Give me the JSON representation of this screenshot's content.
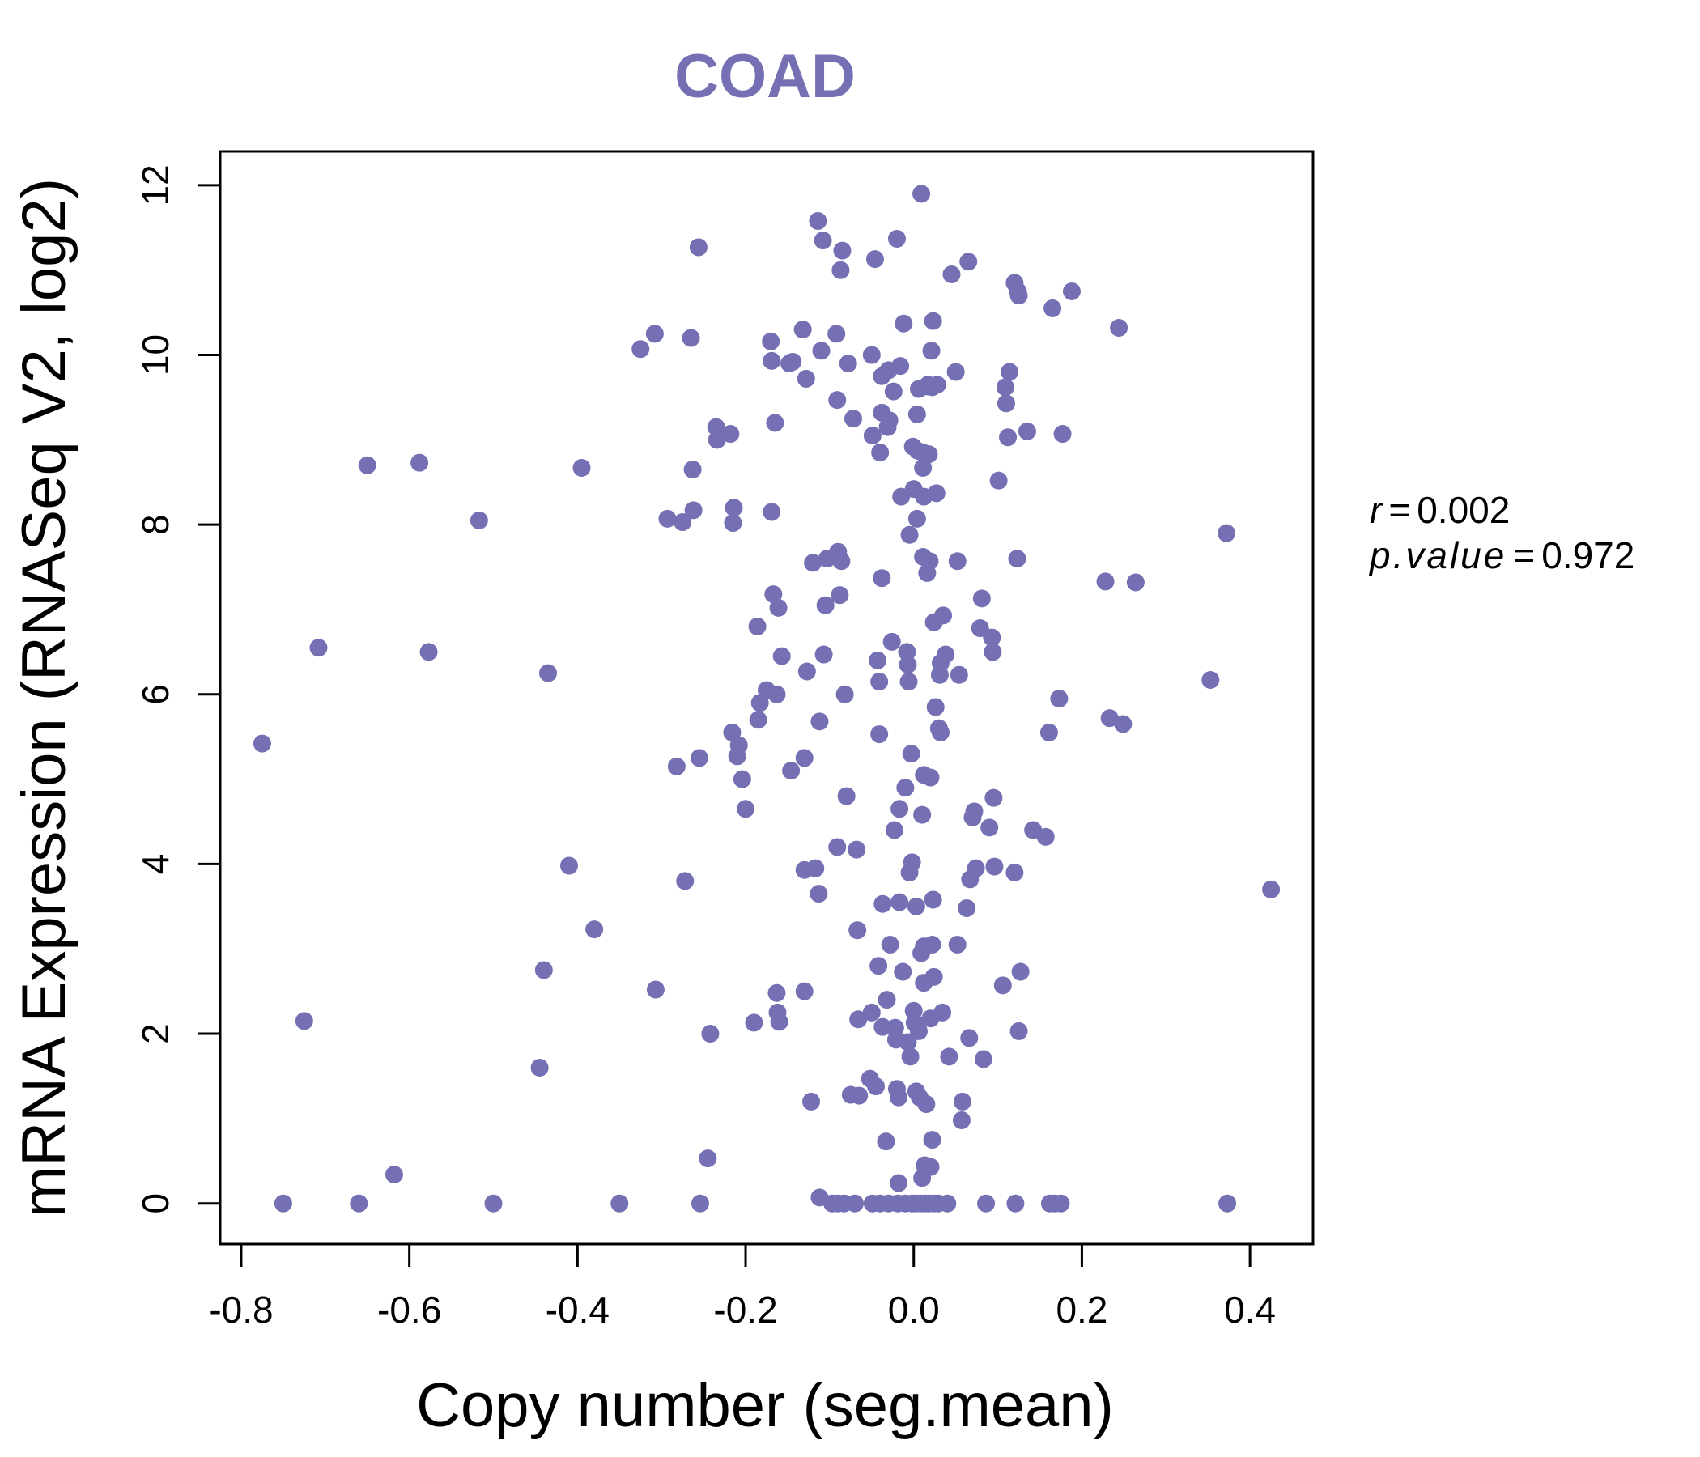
{
  "chart_data": {
    "type": "scatter",
    "title": "COAD",
    "xlabel": "Copy number (seg.mean)",
    "ylabel": "mRNA Expression (RNASeq V2, log2)",
    "xlim": [
      -0.825,
      0.475
    ],
    "ylim": [
      -0.48,
      12.4
    ],
    "x_ticks": [
      -0.8,
      -0.6,
      -0.4,
      -0.2,
      0.0,
      0.2,
      0.4
    ],
    "x_tick_labels": [
      "-0.8",
      "-0.6",
      "-0.4",
      "-0.2",
      "0.0",
      "0.2",
      "0.4"
    ],
    "y_ticks": [
      0,
      2,
      4,
      6,
      8,
      10,
      12
    ],
    "y_tick_labels": [
      "0",
      "2",
      "4",
      "6",
      "8",
      "10",
      "12"
    ],
    "grid": false,
    "legend": "none",
    "point_color": "#7570b3",
    "stats": {
      "r_label": "r",
      "r_value": "0.002",
      "p_label": "p.value",
      "p_value": "0.972"
    },
    "points": [
      [
        -0.775,
        5.42
      ],
      [
        -0.75,
        0.0
      ],
      [
        -0.725,
        2.15
      ],
      [
        -0.708,
        6.55
      ],
      [
        -0.66,
        0.0
      ],
      [
        -0.65,
        8.7
      ],
      [
        -0.618,
        0.34
      ],
      [
        -0.588,
        8.73
      ],
      [
        -0.577,
        6.5
      ],
      [
        -0.517,
        8.05
      ],
      [
        -0.5,
        0.0
      ],
      [
        -0.445,
        1.6
      ],
      [
        -0.44,
        2.75
      ],
      [
        -0.435,
        6.25
      ],
      [
        -0.41,
        3.98
      ],
      [
        -0.395,
        8.67
      ],
      [
        -0.38,
        3.23
      ],
      [
        -0.35,
        0.0
      ],
      [
        -0.325,
        10.07
      ],
      [
        -0.308,
        10.25
      ],
      [
        -0.307,
        2.52
      ],
      [
        -0.293,
        8.07
      ],
      [
        -0.282,
        5.15
      ],
      [
        -0.275,
        8.03
      ],
      [
        -0.272,
        3.8
      ],
      [
        -0.265,
        10.2
      ],
      [
        -0.263,
        8.65
      ],
      [
        -0.262,
        8.17
      ],
      [
        -0.256,
        11.27
      ],
      [
        -0.255,
        5.25
      ],
      [
        -0.254,
        0.0
      ],
      [
        -0.245,
        0.53
      ],
      [
        -0.242,
        2.0
      ],
      [
        -0.235,
        9.15
      ],
      [
        -0.234,
        9.0
      ],
      [
        -0.218,
        9.07
      ],
      [
        -0.216,
        5.55
      ],
      [
        -0.215,
        8.02
      ],
      [
        -0.214,
        8.2
      ],
      [
        -0.21,
        5.27
      ],
      [
        -0.208,
        5.4
      ],
      [
        -0.204,
        5.0
      ],
      [
        -0.2,
        4.65
      ],
      [
        -0.19,
        2.13
      ],
      [
        -0.186,
        6.8
      ],
      [
        -0.185,
        5.7
      ],
      [
        -0.183,
        5.9
      ],
      [
        -0.175,
        6.05
      ],
      [
        -0.17,
        10.16
      ],
      [
        -0.169,
        9.93
      ],
      [
        -0.169,
        8.15
      ],
      [
        -0.167,
        7.18
      ],
      [
        -0.165,
        9.2
      ],
      [
        -0.163,
        6.0
      ],
      [
        -0.163,
        2.48
      ],
      [
        -0.162,
        2.25
      ],
      [
        -0.161,
        7.02
      ],
      [
        -0.16,
        2.14
      ],
      [
        -0.157,
        6.45
      ],
      [
        -0.148,
        9.9
      ],
      [
        -0.146,
        5.1
      ],
      [
        -0.144,
        9.92
      ],
      [
        -0.132,
        10.3
      ],
      [
        -0.13,
        5.25
      ],
      [
        -0.13,
        3.93
      ],
      [
        -0.13,
        2.5
      ],
      [
        -0.128,
        9.72
      ],
      [
        -0.127,
        6.27
      ],
      [
        -0.122,
        1.2
      ],
      [
        -0.12,
        7.55
      ],
      [
        -0.117,
        3.95
      ],
      [
        -0.114,
        11.58
      ],
      [
        -0.113,
        3.65
      ],
      [
        -0.112,
        5.68
      ],
      [
        -0.112,
        0.07
      ],
      [
        -0.11,
        10.05
      ],
      [
        -0.108,
        11.35
      ],
      [
        -0.107,
        6.47
      ],
      [
        -0.105,
        7.05
      ],
      [
        -0.103,
        7.6
      ],
      [
        -0.097,
        0.0
      ],
      [
        -0.092,
        10.25
      ],
      [
        -0.091,
        9.47
      ],
      [
        -0.091,
        4.2
      ],
      [
        -0.09,
        0.0
      ],
      [
        -0.09,
        7.68
      ],
      [
        -0.088,
        7.17
      ],
      [
        -0.087,
        11.0
      ],
      [
        -0.086,
        7.57
      ],
      [
        -0.085,
        11.23
      ],
      [
        -0.083,
        0.0
      ],
      [
        -0.082,
        6.0
      ],
      [
        -0.08,
        4.8
      ],
      [
        -0.078,
        9.9
      ],
      [
        -0.075,
        1.28
      ],
      [
        -0.072,
        9.25
      ],
      [
        -0.07,
        0.0
      ],
      [
        -0.068,
        4.17
      ],
      [
        -0.067,
        3.22
      ],
      [
        -0.066,
        2.17
      ],
      [
        -0.065,
        1.27
      ],
      [
        -0.052,
        1.47
      ],
      [
        -0.05,
        10.0
      ],
      [
        -0.05,
        2.25
      ],
      [
        -0.049,
        9.05
      ],
      [
        -0.049,
        0.0
      ],
      [
        -0.046,
        11.13
      ],
      [
        -0.045,
        1.38
      ],
      [
        -0.043,
        6.4
      ],
      [
        -0.042,
        2.8
      ],
      [
        -0.041,
        6.15
      ],
      [
        -0.041,
        5.53
      ],
      [
        -0.04,
        8.85
      ],
      [
        -0.04,
        0.0
      ],
      [
        -0.038,
        9.75
      ],
      [
        -0.038,
        9.32
      ],
      [
        -0.038,
        7.37
      ],
      [
        -0.037,
        3.53
      ],
      [
        -0.037,
        2.08
      ],
      [
        -0.033,
        0.73
      ],
      [
        -0.032,
        2.4
      ],
      [
        -0.031,
        9.15
      ],
      [
        -0.03,
        9.82
      ],
      [
        -0.03,
        0.0
      ],
      [
        -0.029,
        9.23
      ],
      [
        -0.028,
        3.05
      ],
      [
        -0.026,
        6.62
      ],
      [
        -0.024,
        9.57
      ],
      [
        -0.023,
        4.4
      ],
      [
        -0.022,
        2.07
      ],
      [
        -0.021,
        1.93
      ],
      [
        -0.02,
        11.37
      ],
      [
        -0.02,
        1.35
      ],
      [
        -0.019,
        0.0
      ],
      [
        -0.018,
        1.25
      ],
      [
        -0.018,
        0.24
      ],
      [
        -0.017,
        4.65
      ],
      [
        -0.017,
        3.55
      ],
      [
        -0.016,
        9.87
      ],
      [
        -0.015,
        8.33
      ],
      [
        -0.013,
        2.73
      ],
      [
        -0.012,
        10.37
      ],
      [
        -0.01,
        4.9
      ],
      [
        -0.01,
        0.0
      ],
      [
        -0.008,
        6.5
      ],
      [
        -0.007,
        1.9
      ],
      [
        -0.007,
        6.35
      ],
      [
        -0.006,
        6.15
      ],
      [
        -0.005,
        3.9
      ],
      [
        -0.005,
        7.88
      ],
      [
        -0.004,
        1.73
      ],
      [
        -0.003,
        5.3
      ],
      [
        -0.002,
        4.02
      ],
      [
        -0.002,
        0.0
      ],
      [
        -0.001,
        8.92
      ],
      [
        0.0,
        8.42
      ],
      [
        0.0,
        2.27
      ],
      [
        0.001,
        2.13
      ],
      [
        0.002,
        0.0
      ],
      [
        0.003,
        1.32
      ],
      [
        0.003,
        3.5
      ],
      [
        0.004,
        9.3
      ],
      [
        0.004,
        8.07
      ],
      [
        0.005,
        8.87
      ],
      [
        0.006,
        9.6
      ],
      [
        0.006,
        2.03
      ],
      [
        0.007,
        1.25
      ],
      [
        0.008,
        0.0
      ],
      [
        0.009,
        11.9
      ],
      [
        0.009,
        2.95
      ],
      [
        0.01,
        4.58
      ],
      [
        0.01,
        0.3
      ],
      [
        0.011,
        8.85
      ],
      [
        0.011,
        8.67
      ],
      [
        0.011,
        7.62
      ],
      [
        0.012,
        3.03
      ],
      [
        0.012,
        8.33
      ],
      [
        0.012,
        5.05
      ],
      [
        0.012,
        2.6
      ],
      [
        0.013,
        0.45
      ],
      [
        0.013,
        0.0
      ],
      [
        0.015,
        9.63
      ],
      [
        0.015,
        1.17
      ],
      [
        0.016,
        7.43
      ],
      [
        0.017,
        9.65
      ],
      [
        0.018,
        8.83
      ],
      [
        0.018,
        0.0
      ],
      [
        0.019,
        7.57
      ],
      [
        0.02,
        0.43
      ],
      [
        0.02,
        5.02
      ],
      [
        0.02,
        2.18
      ],
      [
        0.021,
        10.05
      ],
      [
        0.022,
        9.62
      ],
      [
        0.022,
        0.75
      ],
      [
        0.022,
        3.05
      ],
      [
        0.023,
        10.4
      ],
      [
        0.023,
        3.58
      ],
      [
        0.024,
        0.0
      ],
      [
        0.024,
        6.85
      ],
      [
        0.024,
        2.67
      ],
      [
        0.026,
        5.85
      ],
      [
        0.027,
        8.37
      ],
      [
        0.028,
        9.65
      ],
      [
        0.029,
        0.0
      ],
      [
        0.03,
        5.6
      ],
      [
        0.031,
        6.23
      ],
      [
        0.032,
        6.37
      ],
      [
        0.032,
        5.55
      ],
      [
        0.034,
        2.25
      ],
      [
        0.035,
        6.93
      ],
      [
        0.038,
        6.47
      ],
      [
        0.04,
        0.0
      ],
      [
        0.042,
        1.73
      ],
      [
        0.045,
        10.95
      ],
      [
        0.05,
        9.8
      ],
      [
        0.052,
        7.57
      ],
      [
        0.052,
        3.05
      ],
      [
        0.054,
        6.23
      ],
      [
        0.057,
        0.98
      ],
      [
        0.058,
        1.2
      ],
      [
        0.063,
        3.48
      ],
      [
        0.065,
        11.1
      ],
      [
        0.066,
        1.95
      ],
      [
        0.067,
        3.82
      ],
      [
        0.07,
        4.55
      ],
      [
        0.072,
        4.62
      ],
      [
        0.074,
        3.95
      ],
      [
        0.079,
        6.78
      ],
      [
        0.081,
        7.13
      ],
      [
        0.083,
        1.7
      ],
      [
        0.086,
        0.0
      ],
      [
        0.09,
        4.43
      ],
      [
        0.093,
        6.67
      ],
      [
        0.094,
        6.5
      ],
      [
        0.095,
        4.78
      ],
      [
        0.096,
        3.97
      ],
      [
        0.101,
        8.52
      ],
      [
        0.106,
        2.57
      ],
      [
        0.109,
        9.62
      ],
      [
        0.11,
        9.43
      ],
      [
        0.112,
        9.03
      ],
      [
        0.114,
        9.8
      ],
      [
        0.12,
        10.85
      ],
      [
        0.12,
        3.9
      ],
      [
        0.121,
        0.0
      ],
      [
        0.123,
        7.6
      ],
      [
        0.124,
        10.75
      ],
      [
        0.125,
        10.7
      ],
      [
        0.125,
        2.03
      ],
      [
        0.127,
        2.73
      ],
      [
        0.135,
        9.1
      ],
      [
        0.142,
        4.4
      ],
      [
        0.157,
        4.32
      ],
      [
        0.161,
        5.55
      ],
      [
        0.162,
        0.0
      ],
      [
        0.165,
        10.55
      ],
      [
        0.168,
        0.0
      ],
      [
        0.173,
        5.95
      ],
      [
        0.175,
        0.0
      ],
      [
        0.177,
        9.07
      ],
      [
        0.188,
        10.75
      ],
      [
        0.228,
        7.33
      ],
      [
        0.233,
        5.72
      ],
      [
        0.244,
        10.32
      ],
      [
        0.249,
        5.65
      ],
      [
        0.264,
        7.32
      ],
      [
        0.353,
        6.17
      ],
      [
        0.372,
        7.9
      ],
      [
        0.373,
        0.0
      ],
      [
        0.425,
        3.7
      ]
    ]
  }
}
